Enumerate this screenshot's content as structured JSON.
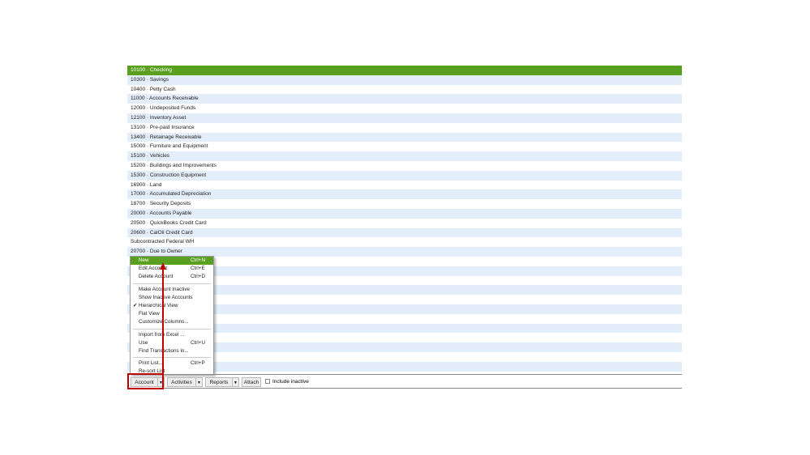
{
  "accounts": [
    "10100 · Checking",
    "10300 · Savings",
    "10400 · Petty Cash",
    "11000 · Accounts Receivable",
    "12000 · Undeposited Funds",
    "12100 · Inventory Asset",
    "13100 · Pre-paid Insurance",
    "13400 · Retainage Receivable",
    "15000 · Furniture and Equipment",
    "15100 · Vehicles",
    "15200 · Buildings and Improvements",
    "15300 · Construction Equipment",
    "16900 · Land",
    "17000 · Accumulated Depreciation",
    "18700 · Security Deposits",
    "20000 · Accounts Payable",
    "20500 · QuickBooks Credit Card",
    "20600 · CalOil Credit Card",
    "Subcontracted Federal WH",
    "20700 · Due to Owner"
  ],
  "menu": {
    "groups": [
      {
        "items": [
          {
            "label": "New",
            "shortcut": "Ctrl+N"
          },
          {
            "label": "Edit Account",
            "shortcut": "Ctrl+E"
          },
          {
            "label": "Delete Account",
            "shortcut": "Ctrl+D"
          }
        ]
      },
      {
        "items": [
          {
            "label": "Make Account Inactive"
          },
          {
            "label": "Show Inactive Accounts"
          },
          {
            "label": "Hierarchical View",
            "checked": true
          },
          {
            "label": "Flat View"
          },
          {
            "label": "Customize Columns..."
          }
        ]
      },
      {
        "items": [
          {
            "label": "Import from Excel ..."
          },
          {
            "label": "Use",
            "shortcut": "Ctrl+U"
          },
          {
            "label": "Find Transactions in..."
          }
        ]
      },
      {
        "items": [
          {
            "label": "Print List...",
            "shortcut": "Ctrl+P"
          },
          {
            "label": "Re-sort List"
          }
        ]
      }
    ]
  },
  "toolbar": {
    "buttons": [
      "Account",
      "Activities",
      "Reports",
      "Attach"
    ],
    "checkbox": "Include inactive"
  }
}
